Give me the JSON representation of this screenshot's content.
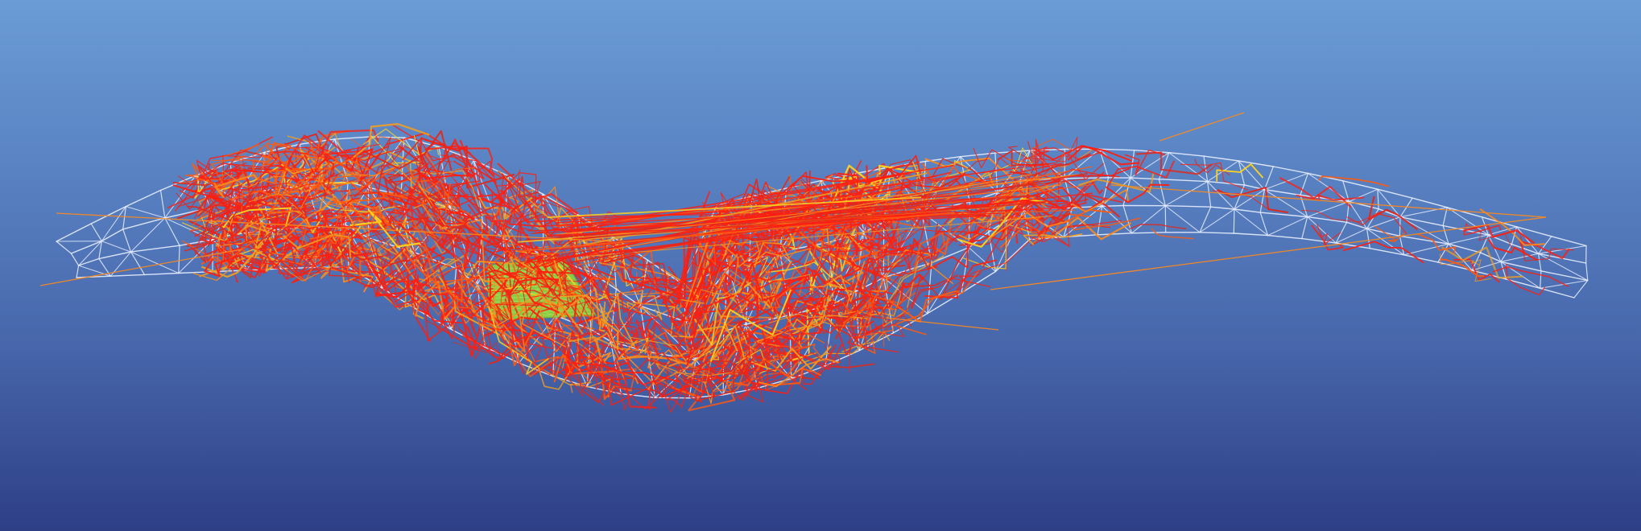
{
  "scene": {
    "background_top": "#6b9cd5",
    "background_bottom": "#2e3f86",
    "mesh_color": "#e8eeff",
    "body_color": "#8fd63a",
    "path_colors": [
      "#ff1e10",
      "#e0281c",
      "#ff5a10",
      "#ff8a1a",
      "#f0a020",
      "#ffd21e"
    ],
    "view": "3d-wireframe-mesh-with-streamlines"
  }
}
